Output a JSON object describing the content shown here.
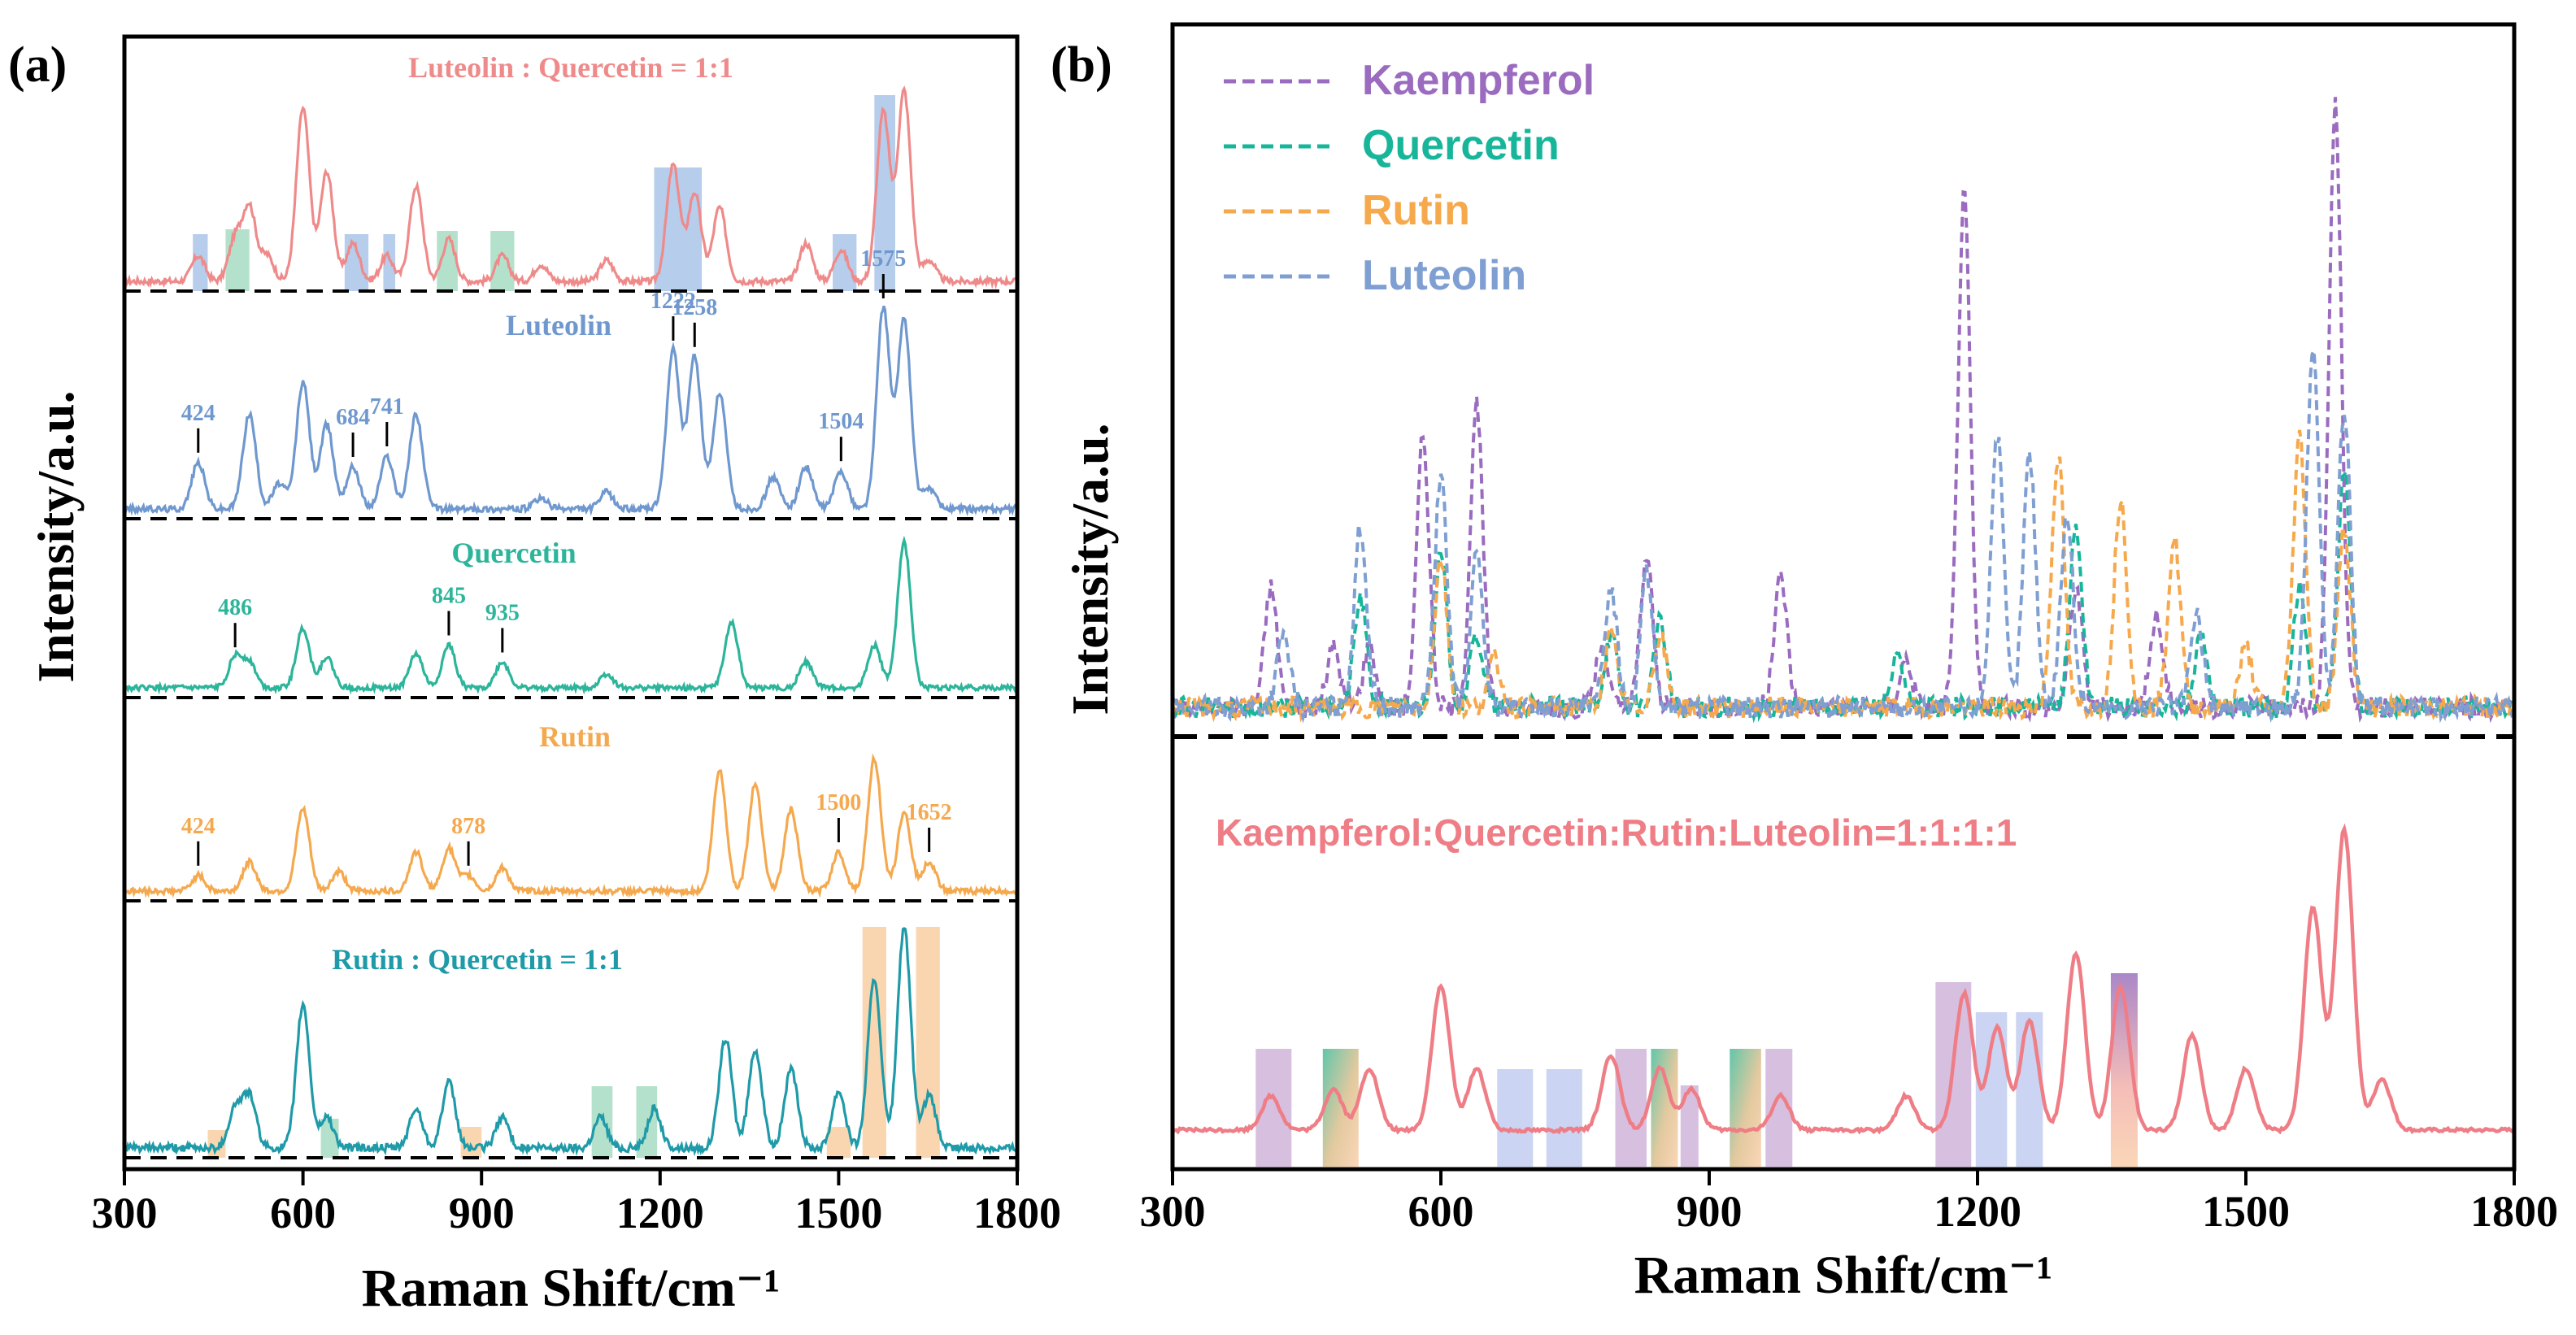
{
  "chart_data": [
    {
      "panel": "a",
      "panel_label": "(a)",
      "type": "line",
      "layout": "stacked-offset spectra with dashed baselines",
      "xlabel": "Raman Shift/cm⁻¹",
      "ylabel": "Intensity/a.u.",
      "xlim": [
        300,
        1800
      ],
      "xticks": [
        300,
        600,
        900,
        1200,
        1500,
        1800
      ],
      "xtick_labels": [
        "300",
        "600",
        "900",
        "1200",
        "1500",
        "1800"
      ],
      "colors": {
        "luteolin_quercetin": "#ef8a8a",
        "luteolin": "#6f98cf",
        "quercetin": "#2cb59a",
        "rutin": "#f5a94e",
        "rutin_quercetin": "#1e9aa8",
        "band_blue": "#a9c4e8",
        "band_green": "#a7dcc3",
        "band_orange": "#f8cfa2"
      },
      "spectra": [
        {
          "name": "Luteolin : Quercetin = 1:1",
          "color": "#ef8a8a",
          "peaks": [
            [
              424,
              0.12
            ],
            [
              486,
              0.2
            ],
            [
              510,
              0.35
            ],
            [
              540,
              0.12
            ],
            [
              600,
              0.82
            ],
            [
              640,
              0.52
            ],
            [
              684,
              0.18
            ],
            [
              741,
              0.12
            ],
            [
              790,
              0.45
            ],
            [
              845,
              0.2
            ],
            [
              935,
              0.12
            ],
            [
              1000,
              0.08
            ],
            [
              1110,
              0.1
            ],
            [
              1222,
              0.55
            ],
            [
              1258,
              0.42
            ],
            [
              1300,
              0.35
            ],
            [
              1445,
              0.18
            ],
            [
              1504,
              0.15
            ],
            [
              1575,
              0.8
            ],
            [
              1610,
              0.9
            ],
            [
              1652,
              0.1
            ]
          ],
          "bands": [
            {
              "range": [
                415,
                440
              ],
              "color": "blue"
            },
            {
              "range": [
                470,
                510
              ],
              "color": "green"
            },
            {
              "range": [
                670,
                710
              ],
              "color": "blue"
            },
            {
              "range": [
                735,
                755
              ],
              "color": "blue"
            },
            {
              "range": [
                825,
                860
              ],
              "color": "green"
            },
            {
              "range": [
                915,
                955
              ],
              "color": "green"
            },
            {
              "range": [
                1190,
                1270
              ],
              "color": "blue"
            },
            {
              "range": [
                1490,
                1530
              ],
              "color": "blue"
            },
            {
              "range": [
                1560,
                1595
              ],
              "color": "blue"
            }
          ]
        },
        {
          "name": "Luteolin",
          "color": "#6f98cf",
          "peaks": [
            [
              424,
              0.22
            ],
            [
              510,
              0.45
            ],
            [
              560,
              0.12
            ],
            [
              600,
              0.6
            ],
            [
              640,
              0.4
            ],
            [
              684,
              0.2
            ],
            [
              741,
              0.25
            ],
            [
              790,
              0.45
            ],
            [
              1000,
              0.05
            ],
            [
              1110,
              0.08
            ],
            [
              1222,
              0.75
            ],
            [
              1258,
              0.72
            ],
            [
              1300,
              0.55
            ],
            [
              1390,
              0.15
            ],
            [
              1445,
              0.2
            ],
            [
              1504,
              0.18
            ],
            [
              1575,
              0.95
            ],
            [
              1610,
              0.9
            ],
            [
              1652,
              0.1
            ]
          ],
          "annotations": [
            {
              "x": 424,
              "label": "424"
            },
            {
              "x": 684,
              "label": "684"
            },
            {
              "x": 741,
              "label": "741"
            },
            {
              "x": 1222,
              "label": "1222"
            },
            {
              "x": 1258,
              "label": "1258"
            },
            {
              "x": 1504,
              "label": "1504"
            },
            {
              "x": 1575,
              "label": "1575"
            }
          ]
        },
        {
          "name": "Quercetin",
          "color": "#2cb59a",
          "peaks": [
            [
              486,
              0.18
            ],
            [
              510,
              0.15
            ],
            [
              600,
              0.35
            ],
            [
              640,
              0.18
            ],
            [
              790,
              0.2
            ],
            [
              845,
              0.25
            ],
            [
              935,
              0.15
            ],
            [
              1110,
              0.08
            ],
            [
              1320,
              0.38
            ],
            [
              1445,
              0.15
            ],
            [
              1560,
              0.25
            ],
            [
              1610,
              0.85
            ]
          ],
          "annotations": [
            {
              "x": 486,
              "label": "486"
            },
            {
              "x": 845,
              "label": "845"
            },
            {
              "x": 935,
              "label": "935"
            }
          ]
        },
        {
          "name": "Rutin",
          "color": "#f5a94e",
          "peaks": [
            [
              424,
              0.08
            ],
            [
              510,
              0.15
            ],
            [
              600,
              0.42
            ],
            [
              660,
              0.1
            ],
            [
              790,
              0.2
            ],
            [
              845,
              0.22
            ],
            [
              878,
              0.08
            ],
            [
              935,
              0.12
            ],
            [
              1300,
              0.62
            ],
            [
              1360,
              0.55
            ],
            [
              1420,
              0.42
            ],
            [
              1500,
              0.2
            ],
            [
              1560,
              0.68
            ],
            [
              1610,
              0.4
            ],
            [
              1652,
              0.15
            ]
          ],
          "annotations": [
            {
              "x": 424,
              "label": "424"
            },
            {
              "x": 878,
              "label": "878"
            },
            {
              "x": 1500,
              "label": "1500"
            },
            {
              "x": 1652,
              "label": "1652"
            }
          ]
        },
        {
          "name": "Rutin : Quercetin = 1:1",
          "color": "#1e9aa8",
          "peaks": [
            [
              486,
              0.15
            ],
            [
              510,
              0.2
            ],
            [
              600,
              0.55
            ],
            [
              640,
              0.12
            ],
            [
              790,
              0.15
            ],
            [
              845,
              0.25
            ],
            [
              935,
              0.12
            ],
            [
              1100,
              0.12
            ],
            [
              1190,
              0.15
            ],
            [
              1310,
              0.42
            ],
            [
              1360,
              0.38
            ],
            [
              1420,
              0.3
            ],
            [
              1500,
              0.22
            ],
            [
              1560,
              0.65
            ],
            [
              1610,
              0.85
            ],
            [
              1652,
              0.2
            ]
          ],
          "bands": [
            {
              "range": [
                440,
                470
              ],
              "color": "orange"
            },
            {
              "range": [
                630,
                660
              ],
              "color": "green"
            },
            {
              "range": [
                865,
                900
              ],
              "color": "orange"
            },
            {
              "range": [
                1085,
                1120
              ],
              "color": "green"
            },
            {
              "range": [
                1160,
                1195
              ],
              "color": "green"
            },
            {
              "range": [
                1480,
                1520
              ],
              "color": "orange"
            },
            {
              "range": [
                1540,
                1580
              ],
              "color": "orange"
            },
            {
              "range": [
                1630,
                1670
              ],
              "color": "orange"
            }
          ]
        }
      ]
    },
    {
      "panel": "b",
      "panel_label": "(b)",
      "type": "line",
      "xlabel": "Raman Shift/cm⁻¹",
      "ylabel": "Intensity/a.u.",
      "xlim": [
        300,
        1800
      ],
      "xticks": [
        300,
        600,
        900,
        1200,
        1500,
        1800
      ],
      "xtick_labels": [
        "300",
        "600",
        "900",
        "1200",
        "1500",
        "1800"
      ],
      "legend": {
        "position": "top-left",
        "entries": [
          {
            "label": "Kaempferol",
            "color": "#9a6bbf",
            "style": "dashed"
          },
          {
            "label": "Quercetin",
            "color": "#17b69a",
            "style": "dashed"
          },
          {
            "label": "Rutin",
            "color": "#f6a94c",
            "style": "dashed"
          },
          {
            "label": "Luteolin",
            "color": "#7f9fd2",
            "style": "dashed"
          }
        ]
      },
      "series": [
        {
          "name": "Kaempferol",
          "color": "#9a6bbf",
          "style": "dashed",
          "peaks": [
            [
              410,
              0.2
            ],
            [
              480,
              0.1
            ],
            [
              520,
              0.1
            ],
            [
              580,
              0.45
            ],
            [
              640,
              0.5
            ],
            [
              780,
              0.1
            ],
            [
              830,
              0.25
            ],
            [
              980,
              0.22
            ],
            [
              1120,
              0.08
            ],
            [
              1185,
              0.85
            ],
            [
              1310,
              0.2
            ],
            [
              1400,
              0.15
            ],
            [
              1600,
              1.0
            ]
          ]
        },
        {
          "name": "Quercetin",
          "color": "#17b69a",
          "style": "dashed",
          "peaks": [
            [
              510,
              0.18
            ],
            [
              600,
              0.25
            ],
            [
              640,
              0.12
            ],
            [
              790,
              0.12
            ],
            [
              845,
              0.14
            ],
            [
              1110,
              0.08
            ],
            [
              1310,
              0.3
            ],
            [
              1450,
              0.12
            ],
            [
              1560,
              0.2
            ],
            [
              1610,
              0.4
            ]
          ]
        },
        {
          "name": "Rutin",
          "color": "#f6a94c",
          "style": "dashed",
          "peaks": [
            [
              600,
              0.25
            ],
            [
              660,
              0.08
            ],
            [
              790,
              0.12
            ],
            [
              845,
              0.12
            ],
            [
              1290,
              0.42
            ],
            [
              1360,
              0.35
            ],
            [
              1420,
              0.28
            ],
            [
              1500,
              0.1
            ],
            [
              1560,
              0.45
            ],
            [
              1610,
              0.3
            ]
          ]
        },
        {
          "name": "Luteolin",
          "color": "#7f9fd2",
          "style": "dashed",
          "peaks": [
            [
              424,
              0.12
            ],
            [
              510,
              0.3
            ],
            [
              600,
              0.38
            ],
            [
              640,
              0.25
            ],
            [
              790,
              0.2
            ],
            [
              830,
              0.22
            ],
            [
              1222,
              0.45
            ],
            [
              1258,
              0.42
            ],
            [
              1300,
              0.32
            ],
            [
              1445,
              0.15
            ],
            [
              1575,
              0.6
            ],
            [
              1610,
              0.5
            ]
          ]
        }
      ],
      "mixture": {
        "label": "Kaempferol:Quercetin:Rutin:Luteolin=1:1:1:1",
        "color": "#ef7d86",
        "peaks": [
          [
            410,
            0.1
          ],
          [
            480,
            0.12
          ],
          [
            520,
            0.18
          ],
          [
            600,
            0.42
          ],
          [
            640,
            0.18
          ],
          [
            790,
            0.22
          ],
          [
            845,
            0.18
          ],
          [
            880,
            0.12
          ],
          [
            980,
            0.1
          ],
          [
            1120,
            0.1
          ],
          [
            1185,
            0.4
          ],
          [
            1222,
            0.3
          ],
          [
            1258,
            0.32
          ],
          [
            1310,
            0.52
          ],
          [
            1360,
            0.42
          ],
          [
            1440,
            0.28
          ],
          [
            1500,
            0.18
          ],
          [
            1575,
            0.65
          ],
          [
            1610,
            0.88
          ],
          [
            1652,
            0.15
          ]
        ],
        "bands": [
          {
            "range": [
              393,
              433
            ],
            "color": "purple"
          },
          {
            "range": [
              468,
              508
            ],
            "color": "green-orange"
          },
          {
            "range": [
              663,
              703
            ],
            "color": "blue"
          },
          {
            "range": [
              718,
              758
            ],
            "color": "blue"
          },
          {
            "range": [
              795,
              830
            ],
            "color": "purple"
          },
          {
            "range": [
              835,
              865
            ],
            "color": "green-orange"
          },
          {
            "range": [
              868,
              888
            ],
            "color": "purple"
          },
          {
            "range": [
              923,
              958
            ],
            "color": "green-orange"
          },
          {
            "range": [
              963,
              993
            ],
            "color": "purple"
          },
          {
            "range": [
              1153,
              1193
            ],
            "color": "purple"
          },
          {
            "range": [
              1198,
              1233
            ],
            "color": "blue"
          },
          {
            "range": [
              1243,
              1273
            ],
            "color": "blue"
          },
          {
            "range": [
              1349,
              1379
            ],
            "color": "purple-orange"
          }
        ]
      }
    }
  ]
}
